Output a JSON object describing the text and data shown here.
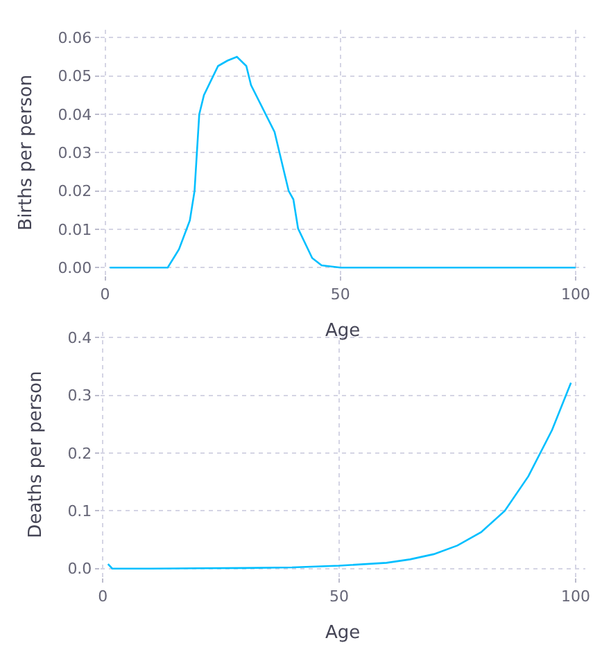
{
  "chart_data": [
    {
      "type": "line",
      "xlabel": "Age",
      "ylabel": "Births per person",
      "grid": true,
      "legend": false,
      "x": [
        1,
        5,
        10,
        13.3,
        15.7,
        18,
        19,
        20,
        21,
        24,
        26,
        28,
        30,
        31,
        36,
        39,
        40,
        41,
        44,
        46,
        50,
        60,
        70,
        80,
        90,
        100
      ],
      "series": [
        {
          "color": "#00bfff",
          "values": [
            0,
            0,
            0,
            0,
            0.0048,
            0.0123,
            0.02,
            0.04,
            0.045,
            0.0526,
            0.054,
            0.055,
            0.0526,
            0.0476,
            0.0354,
            0.02,
            0.0178,
            0.0102,
            0.0025,
            0.0006,
            0,
            0,
            0,
            0,
            0,
            0
          ]
        }
      ],
      "xlim": [
        -1,
        102
      ],
      "xticks": [
        0,
        50,
        100
      ],
      "ylim": [
        -0.002,
        0.062
      ],
      "yticks": [
        {
          "value": 0,
          "label": "0.00"
        },
        {
          "value": 0.01,
          "label": "0.01"
        },
        {
          "value": 0.02,
          "label": "0.02"
        },
        {
          "value": 0.03,
          "label": "0.03"
        },
        {
          "value": 0.04,
          "label": "0.04"
        },
        {
          "value": 0.05,
          "label": "0.05"
        },
        {
          "value": 0.06,
          "label": "0.06"
        }
      ]
    },
    {
      "type": "line",
      "xlabel": "Age",
      "ylabel": "Deaths per person",
      "grid": true,
      "legend": false,
      "x": [
        1.1,
        2,
        10,
        20,
        30,
        40,
        50,
        60,
        65,
        70,
        75,
        80,
        85,
        90,
        95,
        99
      ],
      "series": [
        {
          "color": "#00bfff",
          "values": [
            0.008,
            0,
            0,
            0.0005,
            0.001,
            0.002,
            0.005,
            0.01,
            0.016,
            0.025,
            0.04,
            0.063,
            0.1,
            0.16,
            0.24,
            0.322
          ]
        }
      ],
      "xlim": [
        -0.5,
        102
      ],
      "xticks": [
        0,
        50,
        100
      ],
      "ylim": [
        -0.015,
        0.41
      ],
      "yticks": [
        {
          "value": 0,
          "label": "0.0"
        },
        {
          "value": 0.1,
          "label": "0.1"
        },
        {
          "value": 0.2,
          "label": "0.2"
        },
        {
          "value": 0.3,
          "label": "0.3"
        },
        {
          "value": 0.4,
          "label": "0.4"
        }
      ]
    }
  ]
}
